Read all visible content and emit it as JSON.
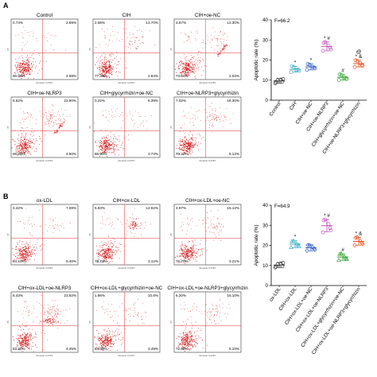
{
  "chart_data": [
    {
      "type": "scatter",
      "subtype": "flow-cytometry-grid",
      "panel_label": "A",
      "axis_labels": {
        "x": "Annexin V-FITC",
        "y": "PI"
      },
      "plots": [
        {
          "title": "Control",
          "quadrants": {
            "ul": "0.74%",
            "ur": "2.69%",
            "ll": "90.50%",
            "lr": "2.08%"
          }
        },
        {
          "title": "CIH",
          "quadrants": {
            "ul": "2.68%",
            "ur": "13.70%",
            "ll": "77.30%",
            "lr": "2.84%"
          }
        },
        {
          "title": "CIH+oe-NC",
          "quadrants": {
            "ul": "3.67%",
            "ur": "13.30%",
            "ll": "73.60%",
            "lr": "2.02%"
          }
        },
        {
          "title": "CIH+oe-NLRP3",
          "quadrants": {
            "ul": "6.62%",
            "ur": "23.90%",
            "ll": "65.00%",
            "lr": "4.50%"
          }
        },
        {
          "title": "CIH+glycyrrhizin+oe-NC",
          "quadrants": {
            "ul": "0.22%",
            "ur": "6.39%",
            "ll": "86.20%",
            "lr": "3.73%"
          }
        },
        {
          "title": "CIH+oe-NLRP3+glycyrrhizin",
          "quadrants": {
            "ul": "7.02%",
            "ur": "18.30%",
            "ll": "73.20%",
            "lr": "5.12%"
          }
        }
      ]
    },
    {
      "type": "scatter",
      "subtype": "dot-plot-mean-sd",
      "panel_label": "A",
      "stat": "F=66.2",
      "ylabel": "Apoptotic rate (%)",
      "ylim": [
        0,
        40
      ],
      "yticks": [
        0,
        10,
        20,
        30,
        40
      ],
      "categories": [
        "Control",
        "CIH",
        "CIH+oe-NC",
        "CIH+oe-NLRP3",
        "CIH+glycyrrhizin+oe-NC",
        "CIH+oe-NLRP3+glycyrrhizin"
      ],
      "colors": [
        "#333333",
        "#3fb0c6",
        "#3462c4",
        "#c44fb8",
        "#34a832",
        "#e8501e"
      ],
      "markers": [
        "circle",
        "circle",
        "circle",
        "circle",
        "circle",
        "circle"
      ],
      "annotations": [
        "",
        "*",
        "*",
        "* #",
        "#",
        "@\n* &"
      ],
      "means": [
        9.6,
        15.4,
        16.6,
        26.8,
        11.4,
        18.2
      ],
      "sd": [
        1.1,
        1.4,
        1.5,
        2.2,
        1.4,
        1.6
      ],
      "points": [
        [
          8.5,
          9.2,
          10.1,
          10.6,
          9.0,
          10.2
        ],
        [
          14.0,
          15.2,
          16.5,
          14.6,
          17.0,
          15.1
        ],
        [
          15.1,
          16.3,
          17.8,
          15.8,
          18.0,
          16.6
        ],
        [
          24.6,
          26.1,
          28.9,
          25.3,
          28.6,
          27.3
        ],
        [
          10.1,
          11.0,
          12.6,
          10.5,
          12.9,
          11.3
        ],
        [
          16.5,
          17.6,
          19.6,
          17.1,
          19.9,
          18.5
        ]
      ]
    },
    {
      "type": "scatter",
      "subtype": "flow-cytometry-grid",
      "panel_label": "B",
      "axis_labels": {
        "x": "Annexin V-FITC",
        "y": "PI"
      },
      "plots": [
        {
          "title": "ox-LDL",
          "quadrants": {
            "ul": "3.42%",
            "ur": "7.08%",
            "ll": "84.10%",
            "lr": "5.40%"
          }
        },
        {
          "title": "CIH+ox-LDL",
          "quadrants": {
            "ul": "5.83%",
            "ur": "14.92%",
            "ll": "76.13%",
            "lr": "3.12%"
          }
        },
        {
          "title": "CIH+ox-LDL+oe-NC",
          "quadrants": {
            "ul": "4.97%",
            "ur": "15.12%",
            "ll": "76.70%",
            "lr": "3.21%"
          }
        },
        {
          "title": "CIH+ox-LDL+oe-NLRP3",
          "quadrants": {
            "ul": "8.43%",
            "ur": "23.92%",
            "ll": "63.20%",
            "lr": "4.45%"
          }
        },
        {
          "title": "CIH+ox-LDL+glycyrrhizin+oe-NC",
          "quadrants": {
            "ul": "1.86%",
            "ur": "10.6%",
            "ll": "84.05%",
            "lr": "3.49%"
          }
        },
        {
          "title": "CIH+ox-LDL+oe-NLRP3+glycyrrhizin",
          "quadrants": {
            "ul": "6.20%",
            "ur": "16.10%",
            "ll": "72.60%",
            "lr": "5.10%"
          }
        }
      ]
    },
    {
      "type": "scatter",
      "subtype": "dot-plot-mean-sd",
      "panel_label": "B",
      "stat": "F=64.9",
      "ylabel": "Apoptotic rate (%)",
      "ylim": [
        0,
        40
      ],
      "yticks": [
        0,
        10,
        20,
        30,
        40
      ],
      "categories": [
        "ox-LDL",
        "CIH+ox-LDL",
        "CIH+ox-LDL+oe-NC",
        "CIH+ox-LDL+oe-NLRP3",
        "CIH+ox-LDL+glycyrrhizin+oe-NC",
        "CIH+ox-LDL+oe-NLRP3+glycyrrhizin"
      ],
      "colors": [
        "#333333",
        "#3fb0c6",
        "#3462c4",
        "#c44fb8",
        "#34a832",
        "#e8501e"
      ],
      "markers": [
        "circle",
        "triangle",
        "diamond",
        "circle",
        "triangle",
        "diamond"
      ],
      "annotations": [
        "",
        "*",
        "",
        "* #",
        "#",
        "* &"
      ],
      "means": [
        10.2,
        20.6,
        18.8,
        29.8,
        14.2,
        22.0
      ],
      "sd": [
        1.2,
        1.7,
        1.5,
        3.0,
        1.6,
        1.9
      ],
      "points": [
        [
          9.0,
          9.6,
          10.6,
          11.3,
          9.4,
          11.0
        ],
        [
          19.0,
          20.1,
          22.3,
          19.5,
          22.0,
          20.8
        ],
        [
          17.4,
          18.3,
          20.2,
          17.8,
          20.1,
          19.0
        ],
        [
          26.5,
          28.6,
          32.9,
          27.6,
          32.5,
          30.6
        ],
        [
          12.6,
          13.6,
          15.9,
          13.1,
          15.6,
          14.4
        ],
        [
          20.1,
          21.2,
          24.0,
          20.7,
          23.8,
          22.2
        ]
      ]
    }
  ]
}
